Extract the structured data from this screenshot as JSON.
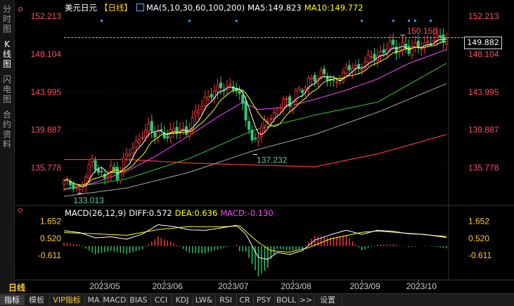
{
  "sidebar": {
    "tabs": [
      {
        "label": "分时图",
        "active": false
      },
      {
        "label": "K线图",
        "active": true
      },
      {
        "label": "闪电图",
        "active": false
      },
      {
        "label": "合约资料",
        "active": false
      }
    ]
  },
  "legend": {
    "symbol": "美元日元",
    "period": "【日线】",
    "ma_params": "MA(5,10,30,60,100,200)",
    "ma5": "MA5:149.823",
    "ma10": "MA10:149.772"
  },
  "macd_legend": {
    "title": "MACD(26,12,9)",
    "diff": "DIFF:0.572",
    "dea": "DEA:0.636",
    "macd": "MACD:-0.130"
  },
  "last_price": "149.882",
  "period_button": "日线",
  "toolbar": {
    "items": [
      "指标",
      "模板",
      "VIP指标",
      "MA",
      "MACD",
      "BIAS",
      "CCI",
      "KDJ",
      "LW&",
      "RSI",
      "CR",
      "PSY",
      "BOLL",
      ">>",
      "设置"
    ]
  },
  "colors": {
    "up": "#ff3b3b",
    "down": "#2ecc71",
    "ma5": "#ffffff",
    "ma10": "#ffff00",
    "ma30": "#ff44ff",
    "ma60": "#33cc33",
    "ma100": "#aaaaaa",
    "ma200": "#ff3333",
    "axis_text": "#ff4d5e",
    "grid": "#cc4444"
  },
  "chart_data": [
    {
      "type": "candlestick",
      "y_ticks": [
        152.213,
        148.104,
        143.995,
        139.887,
        135.778
      ],
      "ylim": [
        132.4,
        153.2
      ],
      "x_ticks": [
        "2023/05",
        "2023/06",
        "2023/07",
        "2023/08",
        "2023/09",
        "2023/10"
      ],
      "annotations": [
        {
          "label": "150.156",
          "value": 150.156,
          "kind": "high"
        },
        {
          "label": "137.232",
          "value": 137.232,
          "kind": "low"
        },
        {
          "label": "133.013",
          "value": 133.013,
          "kind": "low"
        }
      ],
      "last_price": 149.882,
      "series_legend": [
        "MA5:149.823",
        "MA10:149.772"
      ],
      "close_path": [
        [
          0,
          134.2
        ],
        [
          3,
          134.0
        ],
        [
          5,
          133.3
        ],
        [
          7,
          134.8
        ],
        [
          9,
          136.7
        ],
        [
          11,
          135.5
        ],
        [
          13,
          134.6
        ],
        [
          15,
          135.8
        ],
        [
          17,
          134.9
        ],
        [
          19,
          136.6
        ],
        [
          21,
          137.4
        ],
        [
          23,
          138.4
        ],
        [
          25,
          139.6
        ],
        [
          27,
          140.1
        ],
        [
          29,
          139.3
        ],
        [
          31,
          139.8
        ],
        [
          33,
          139.2
        ],
        [
          35,
          139.7
        ],
        [
          37,
          140.0
        ],
        [
          39,
          139.7
        ],
        [
          41,
          140.9
        ],
        [
          43,
          142.1
        ],
        [
          45,
          143.3
        ],
        [
          47,
          143.8
        ],
        [
          49,
          144.2
        ],
        [
          51,
          144.6
        ],
        [
          53,
          144.7
        ],
        [
          55,
          144.2
        ],
        [
          57,
          142.5
        ],
        [
          59,
          140.2
        ],
        [
          60,
          138.6
        ],
        [
          62,
          139.3
        ],
        [
          64,
          140.6
        ],
        [
          66,
          141.6
        ],
        [
          68,
          141.8
        ],
        [
          70,
          143.2
        ],
        [
          72,
          142.5
        ],
        [
          74,
          144.3
        ],
        [
          76,
          143.9
        ],
        [
          78,
          145.2
        ],
        [
          80,
          145.6
        ],
        [
          82,
          146.0
        ],
        [
          84,
          145.4
        ],
        [
          86,
          145.0
        ],
        [
          88,
          145.7
        ],
        [
          90,
          146.2
        ],
        [
          92,
          146.7
        ],
        [
          94,
          146.6
        ],
        [
          96,
          147.3
        ],
        [
          98,
          147.7
        ],
        [
          100,
          147.9
        ],
        [
          102,
          148.6
        ],
        [
          104,
          149.1
        ],
        [
          106,
          148.4
        ],
        [
          108,
          149.2
        ],
        [
          110,
          148.5
        ],
        [
          112,
          148.8
        ],
        [
          114,
          149.1
        ],
        [
          116,
          149.4
        ],
        [
          118,
          149.6
        ],
        [
          120,
          149.8
        ],
        [
          122,
          149.9
        ]
      ],
      "ma30_path": [
        [
          0,
          133.4
        ],
        [
          10,
          134.2
        ],
        [
          20,
          135.4
        ],
        [
          30,
          137.2
        ],
        [
          40,
          139.3
        ],
        [
          50,
          141.5
        ],
        [
          57,
          142.9
        ],
        [
          62,
          142.1
        ],
        [
          70,
          142.3
        ],
        [
          80,
          143.2
        ],
        [
          90,
          144.2
        ],
        [
          100,
          145.4
        ],
        [
          110,
          147.1
        ],
        [
          122,
          148.6
        ]
      ],
      "ma60_path": [
        [
          0,
          133.5
        ],
        [
          20,
          134.6
        ],
        [
          40,
          136.8
        ],
        [
          60,
          139.8
        ],
        [
          80,
          141.5
        ],
        [
          100,
          142.9
        ],
        [
          122,
          147.1
        ]
      ],
      "ma100_path": [
        [
          0,
          132.7
        ],
        [
          20,
          133.6
        ],
        [
          40,
          135.3
        ],
        [
          60,
          137.6
        ],
        [
          80,
          139.4
        ],
        [
          100,
          141.8
        ],
        [
          122,
          144.9
        ]
      ],
      "ma200_path": [
        [
          0,
          136.7
        ],
        [
          20,
          136.7
        ],
        [
          40,
          136.3
        ],
        [
          60,
          136.1
        ],
        [
          80,
          135.9
        ],
        [
          100,
          137.3
        ],
        [
          122,
          139.4
        ]
      ]
    },
    {
      "type": "macd",
      "y_ticks": [
        1.652,
        0.52,
        -0.611
      ],
      "ylim": [
        -2.1,
        2.0
      ],
      "diff": 0.572,
      "dea": 0.636,
      "macd": -0.13,
      "diff_path": [
        [
          0,
          1.02
        ],
        [
          5,
          0.9
        ],
        [
          10,
          0.55
        ],
        [
          15,
          0.62
        ],
        [
          20,
          0.46
        ],
        [
          25,
          0.8
        ],
        [
          30,
          1.42
        ],
        [
          35,
          1.3
        ],
        [
          40,
          1.08
        ],
        [
          45,
          1.05
        ],
        [
          50,
          1.2
        ],
        [
          55,
          1.38
        ],
        [
          58,
          0.8
        ],
        [
          62,
          -0.75
        ],
        [
          65,
          -0.88
        ],
        [
          68,
          -0.42
        ],
        [
          72,
          -0.55
        ],
        [
          76,
          -0.3
        ],
        [
          80,
          0.4
        ],
        [
          85,
          0.76
        ],
        [
          90,
          1.05
        ],
        [
          95,
          0.78
        ],
        [
          100,
          1.05
        ],
        [
          105,
          0.98
        ],
        [
          110,
          0.82
        ],
        [
          115,
          0.78
        ],
        [
          122,
          0.57
        ]
      ],
      "dea_path": [
        [
          0,
          0.9
        ],
        [
          10,
          0.82
        ],
        [
          20,
          0.72
        ],
        [
          30,
          1.1
        ],
        [
          40,
          1.3
        ],
        [
          50,
          1.28
        ],
        [
          56,
          1.35
        ],
        [
          62,
          0.25
        ],
        [
          66,
          -0.3
        ],
        [
          72,
          -0.4
        ],
        [
          78,
          -0.1
        ],
        [
          85,
          0.48
        ],
        [
          95,
          0.92
        ],
        [
          100,
          1.0
        ],
        [
          110,
          0.85
        ],
        [
          122,
          0.64
        ]
      ]
    }
  ]
}
